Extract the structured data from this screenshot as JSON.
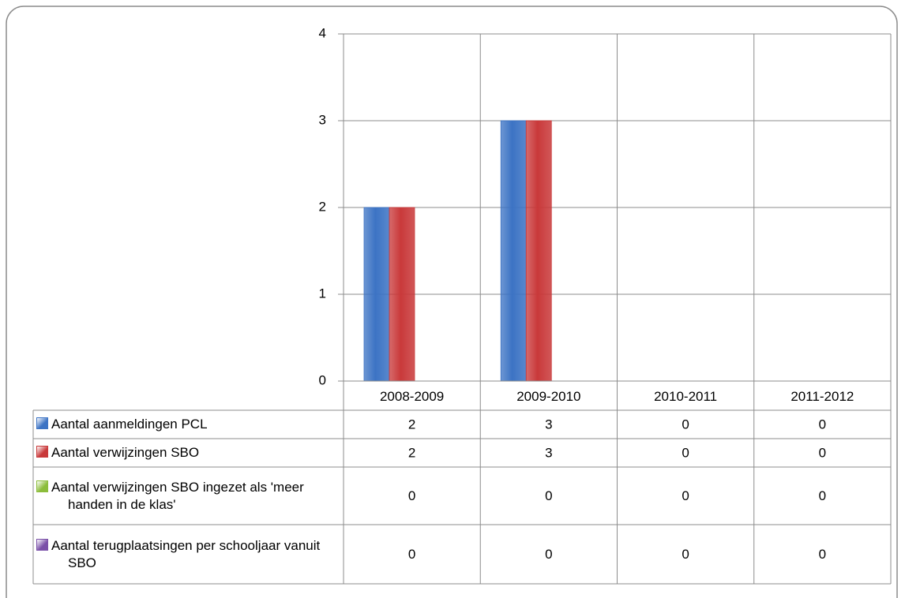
{
  "chart_data": {
    "type": "bar",
    "categories": [
      "2008-2009",
      "2009-2010",
      "2010-2011",
      "2011-2012"
    ],
    "series": [
      {
        "name": "Aantal aanmeldingen PCL",
        "color": "#3c73c4",
        "values": [
          2,
          3,
          0,
          0
        ]
      },
      {
        "name": "Aantal verwijzingen SBO",
        "color": "#c9393a",
        "values": [
          2,
          3,
          0,
          0
        ]
      },
      {
        "name": "Aantal verwijzingen SBO ingezet als 'meer handen in de klas'",
        "color": "#8cbd3b",
        "values": [
          0,
          0,
          0,
          0
        ]
      },
      {
        "name": "Aantal terugplaatsingen per schooljaar vanuit SBO",
        "color": "#7a50a8",
        "values": [
          0,
          0,
          0,
          0
        ]
      }
    ],
    "ylim": [
      0,
      4
    ],
    "yticks": [
      0,
      1,
      2,
      3,
      4
    ],
    "grid": true,
    "data_table": true
  }
}
